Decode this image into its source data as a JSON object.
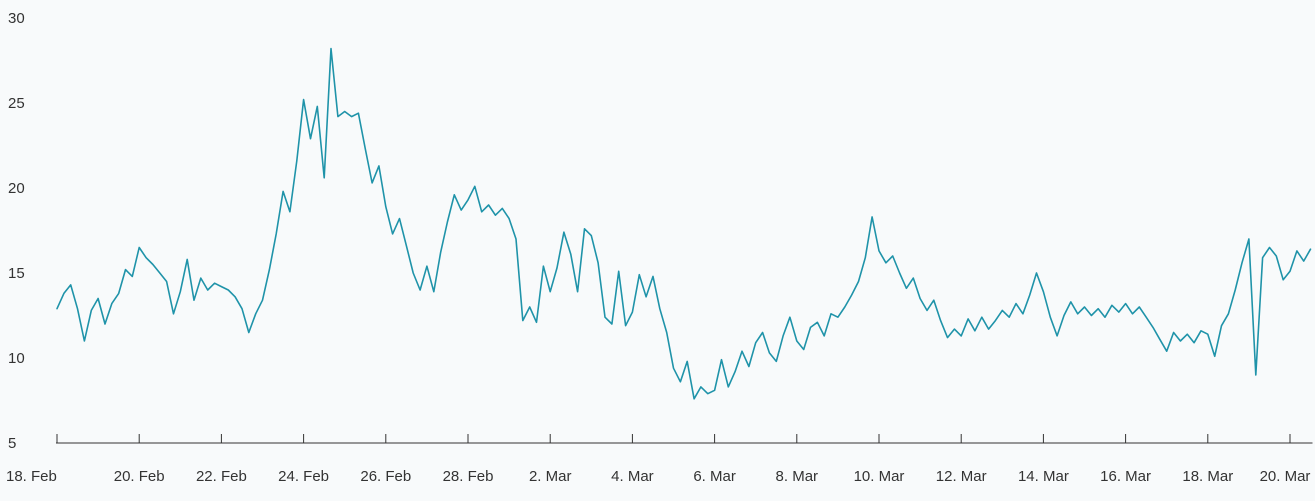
{
  "chart_data": {
    "type": "line",
    "title": "",
    "xlabel": "",
    "ylabel": "",
    "grid": false,
    "legend": false,
    "background_color": "#f8fafb",
    "axis_color": "#333333",
    "label_color": "#333333",
    "ylim": [
      5,
      30
    ],
    "y_ticks": [
      5,
      10,
      15,
      20,
      25,
      30
    ],
    "x_ticks": {
      "days": [
        0,
        2,
        4,
        6,
        8,
        10,
        12,
        14,
        16,
        18,
        20,
        22,
        24,
        26,
        28,
        30
      ],
      "labels": [
        "18. Feb",
        "20. Feb",
        "22. Feb",
        "24. Feb",
        "26. Feb",
        "28. Feb",
        "2. Mar",
        "4. Mar",
        "6. Mar",
        "8. Mar",
        "10. Mar",
        "12. Mar",
        "14. Mar",
        "16. Mar",
        "18. Mar",
        "20. Mar"
      ]
    },
    "samples_per_day": 6,
    "series": [
      {
        "color": "#1f93a9",
        "line_width": 1.6,
        "values": [
          12.9,
          13.8,
          14.3,
          12.9,
          11.0,
          12.8,
          13.5,
          12.0,
          13.2,
          13.8,
          15.2,
          14.8,
          16.5,
          15.9,
          15.5,
          15.0,
          14.5,
          12.6,
          13.9,
          15.8,
          13.4,
          14.7,
          14.0,
          14.4,
          14.2,
          14.0,
          13.6,
          12.9,
          11.5,
          12.6,
          13.4,
          15.2,
          17.3,
          19.8,
          18.6,
          21.6,
          25.2,
          22.9,
          24.8,
          20.6,
          28.2,
          24.2,
          24.5,
          24.2,
          24.4,
          22.3,
          20.3,
          21.3,
          18.9,
          17.3,
          18.2,
          16.6,
          15.0,
          14.0,
          15.4,
          13.9,
          16.2,
          18.0,
          19.6,
          18.7,
          19.3,
          20.1,
          18.6,
          19.0,
          18.4,
          18.8,
          18.2,
          17.0,
          12.2,
          13.0,
          12.1,
          15.4,
          13.9,
          15.3,
          17.4,
          16.1,
          13.9,
          17.6,
          17.2,
          15.6,
          12.4,
          12.0,
          15.1,
          11.9,
          12.7,
          14.9,
          13.6,
          14.8,
          12.9,
          11.5,
          9.4,
          8.6,
          9.8,
          7.6,
          8.3,
          7.9,
          8.1,
          9.9,
          8.3,
          9.2,
          10.4,
          9.5,
          10.9,
          11.5,
          10.3,
          9.8,
          11.3,
          12.4,
          11.0,
          10.5,
          11.8,
          12.1,
          11.3,
          12.6,
          12.4,
          13.0,
          13.7,
          14.5,
          15.9,
          18.3,
          16.3,
          15.6,
          16.0,
          15.0,
          14.1,
          14.7,
          13.5,
          12.8,
          13.4,
          12.2,
          11.2,
          11.7,
          11.3,
          12.3,
          11.6,
          12.4,
          11.7,
          12.2,
          12.8,
          12.4,
          13.2,
          12.6,
          13.7,
          15.0,
          13.9,
          12.4,
          11.3,
          12.5,
          13.3,
          12.6,
          13.0,
          12.5,
          12.9,
          12.4,
          13.1,
          12.7,
          13.2,
          12.6,
          13.0,
          12.4,
          11.8,
          11.1,
          10.4,
          11.5,
          11.0,
          11.4,
          10.9,
          11.6,
          11.4,
          10.1,
          11.9,
          12.6,
          14.0,
          15.6,
          17.0,
          9.0,
          15.9,
          16.5,
          16.0,
          14.6,
          15.1,
          16.3,
          15.7,
          16.4
        ]
      }
    ]
  }
}
